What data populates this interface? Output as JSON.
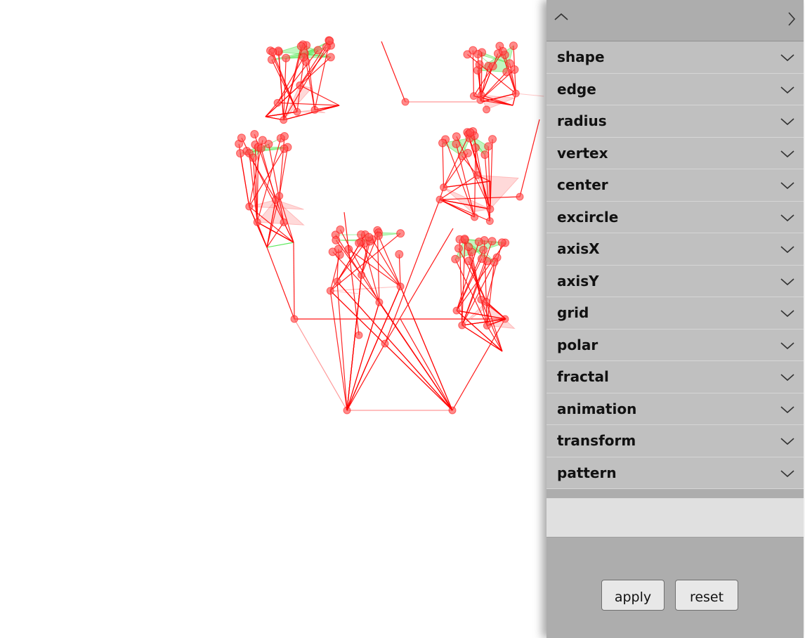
{
  "canvas": {
    "edge_color": "#ff0000",
    "node_color": "#ff4d4d",
    "fill_color": "#4de64d",
    "link_color": "#ff8080"
  },
  "panel": {
    "collapse_icon": "chevron-up-icon",
    "next_icon": "chevron-right-icon",
    "sections": [
      {
        "label": "shape"
      },
      {
        "label": "edge"
      },
      {
        "label": "radius"
      },
      {
        "label": "vertex"
      },
      {
        "label": "center"
      },
      {
        "label": "excircle"
      },
      {
        "label": "axisX"
      },
      {
        "label": "axisY"
      },
      {
        "label": "grid"
      },
      {
        "label": "polar"
      },
      {
        "label": "fractal"
      },
      {
        "label": "animation"
      },
      {
        "label": "transform"
      },
      {
        "label": "pattern"
      }
    ],
    "apply_label": "apply",
    "reset_label": "reset"
  }
}
